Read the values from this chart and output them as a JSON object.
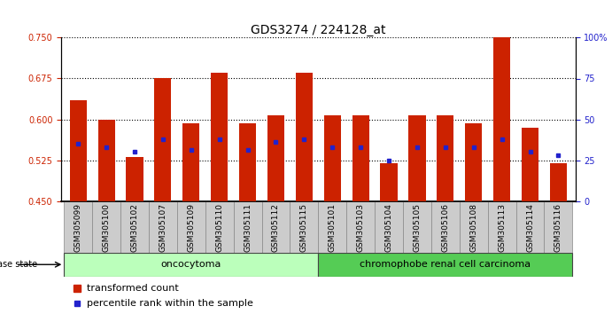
{
  "title": "GDS3274 / 224128_at",
  "samples": [
    "GSM305099",
    "GSM305100",
    "GSM305102",
    "GSM305107",
    "GSM305109",
    "GSM305110",
    "GSM305111",
    "GSM305112",
    "GSM305115",
    "GSM305101",
    "GSM305103",
    "GSM305104",
    "GSM305105",
    "GSM305106",
    "GSM305108",
    "GSM305113",
    "GSM305114",
    "GSM305116"
  ],
  "transformed_count": [
    0.635,
    0.6,
    0.53,
    0.675,
    0.592,
    0.685,
    0.592,
    0.607,
    0.685,
    0.608,
    0.607,
    0.519,
    0.607,
    0.607,
    0.592,
    0.75,
    0.585,
    0.519
  ],
  "percentile_rank_pct": [
    35,
    33,
    30,
    38,
    31,
    38,
    31,
    36,
    38,
    33,
    33,
    25,
    33,
    33,
    33,
    38,
    30,
    28
  ],
  "oncocytoma_count": 9,
  "chromophobe_count": 9,
  "ylim_left": [
    0.45,
    0.75
  ],
  "ylim_right": [
    0,
    100
  ],
  "yticks_left": [
    0.45,
    0.525,
    0.6,
    0.675,
    0.75
  ],
  "yticks_right": [
    0,
    25,
    50,
    75,
    100
  ],
  "bar_color": "#cc2200",
  "dot_color": "#2222cc",
  "oncocytoma_color": "#bbffbb",
  "chromophobe_color": "#55cc55",
  "label_bg_color": "#cccccc",
  "legend_bar_label": "transformed count",
  "legend_dot_label": "percentile rank within the sample",
  "disease_state_label": "disease state",
  "oncocytoma_label": "oncocytoma",
  "chromophobe_label": "chromophobe renal cell carcinoma",
  "title_fontsize": 10,
  "tick_fontsize": 7,
  "axis_label_color_left": "#cc2200",
  "axis_label_color_right": "#2222cc"
}
